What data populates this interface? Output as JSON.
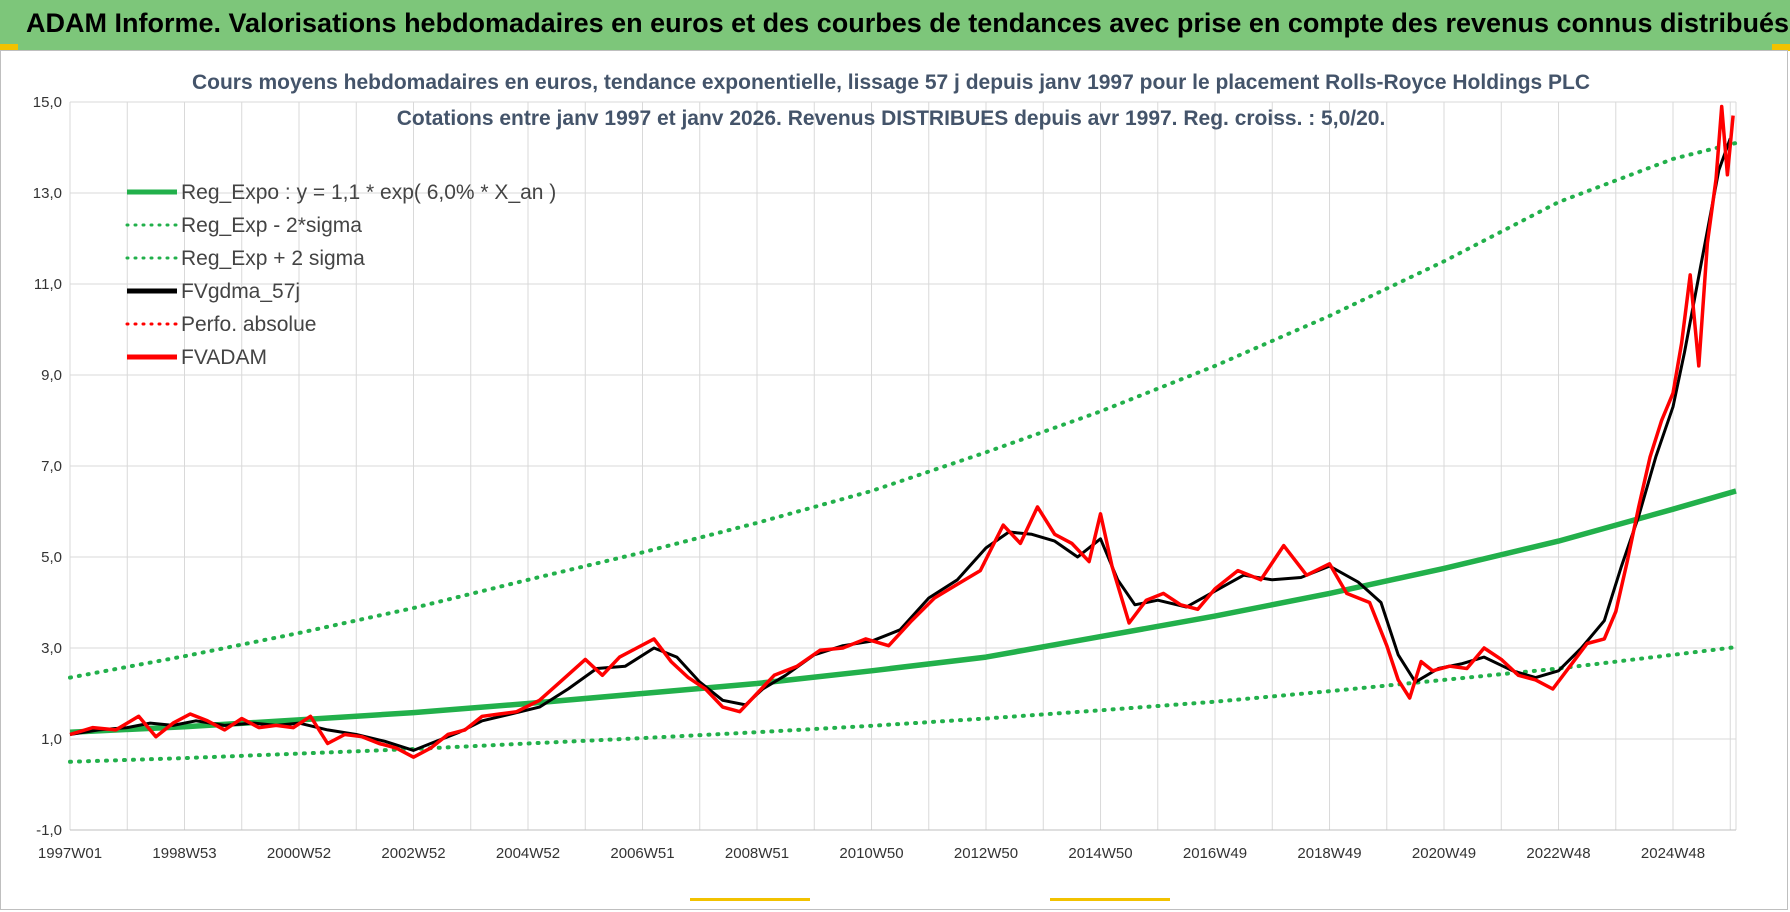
{
  "banner": {
    "title": "ADAM Informe. Valorisations hebdomadaires en euros et des courbes de tendances avec prise en compte des revenus connus distribués"
  },
  "colors": {
    "banner_bg": "#7dc67a",
    "reg_expo": "#22b04b",
    "black_line": "#000000",
    "red_line": "#ff0000",
    "grid": "#d9d9d9"
  },
  "chart_data": {
    "type": "line",
    "title_line1": "Cours moyens hebdomadaires en euros, tendance exponentielle, lissage 57 j depuis janv 1997  pour le placement Rolls-Royce Holdings PLC",
    "title_line2": "Cotations entre janv 1997 et janv 2026. Revenus DISTRIBUES depuis avr 1997. Reg. croiss. : 5,0/20.",
    "ylim": [
      -1,
      15
    ],
    "yticks": [
      "-1,0",
      "1,0",
      "3,0",
      "5,0",
      "7,0",
      "9,0",
      "11,0",
      "13,0",
      "15,0"
    ],
    "xlim": [
      1997.0,
      2026.1
    ],
    "xtick_labels": [
      "1997W01",
      "1998W53",
      "2000W52",
      "2002W52",
      "2004W52",
      "2006W51",
      "2008W51",
      "2010W50",
      "2012W50",
      "2014W50",
      "2016W49",
      "2018W49",
      "2020W49",
      "2022W48",
      "2024W48"
    ],
    "xtick_years": [
      1997.0,
      1999.0,
      2001.0,
      2003.0,
      2005.0,
      2007.0,
      2009.0,
      2011.0,
      2013.0,
      2015.0,
      2017.0,
      2019.0,
      2021.0,
      2023.0,
      2025.0
    ],
    "legend": [
      {
        "label": "Reg_Expo : y = 1,1 * exp( 6,0% *  X_an )",
        "color": "#22b04b",
        "style": "solid"
      },
      {
        "label": "Reg_Exp - 2*sigma",
        "color": "#22b04b",
        "style": "dotted"
      },
      {
        "label": "Reg_Exp + 2 sigma",
        "color": "#22b04b",
        "style": "dotted"
      },
      {
        "label": "FVgdma_57j",
        "color": "#000000",
        "style": "solid"
      },
      {
        "label": "Perfo. absolue",
        "color": "#ff0000",
        "style": "dotted"
      },
      {
        "label": "FVADAM",
        "color": "#ff0000",
        "style": "solid"
      }
    ],
    "series": [
      {
        "name": "Reg_Expo : y = 1,1 * exp( 6,0% *  X_an )",
        "x": [
          1997.0,
          1999.0,
          2001.0,
          2003.0,
          2005.0,
          2007.0,
          2009.0,
          2011.0,
          2013.0,
          2015.0,
          2017.0,
          2019.0,
          2021.0,
          2023.0,
          2025.0,
          2026.1
        ],
        "y": [
          1.15,
          1.27,
          1.42,
          1.58,
          1.78,
          2.0,
          2.22,
          2.5,
          2.8,
          3.25,
          3.7,
          4.2,
          4.75,
          5.35,
          6.05,
          6.45
        ]
      },
      {
        "name": "Reg_Exp - 2*sigma",
        "x": [
          1997.0,
          1999.0,
          2001.0,
          2003.0,
          2005.0,
          2007.0,
          2009.0,
          2011.0,
          2013.0,
          2015.0,
          2017.0,
          2019.0,
          2021.0,
          2023.0,
          2025.0,
          2026.1
        ],
        "y": [
          0.5,
          0.58,
          0.68,
          0.78,
          0.9,
          1.02,
          1.15,
          1.29,
          1.45,
          1.63,
          1.82,
          2.05,
          2.3,
          2.55,
          2.85,
          3.02
        ]
      },
      {
        "name": "Reg_Exp + 2 sigma",
        "x": [
          1997.0,
          1999.0,
          2001.0,
          2003.0,
          2005.0,
          2007.0,
          2009.0,
          2011.0,
          2013.0,
          2015.0,
          2017.0,
          2019.0,
          2021.0,
          2023.0,
          2025.0,
          2026.1
        ],
        "y": [
          2.35,
          2.82,
          3.33,
          3.88,
          4.5,
          5.1,
          5.75,
          6.45,
          7.3,
          8.2,
          9.2,
          10.3,
          11.5,
          12.8,
          13.75,
          14.1
        ]
      },
      {
        "name": "FVgdma_57j",
        "x": [
          1997.0,
          1997.5,
          1998.0,
          1998.4,
          1998.8,
          1999.2,
          1999.7,
          2000.2,
          2000.6,
          2001.0,
          2001.5,
          2002.0,
          2002.5,
          2003.0,
          2003.3,
          2003.8,
          2004.2,
          2004.7,
          2005.2,
          2005.7,
          2006.2,
          2006.7,
          2007.2,
          2007.6,
          2008.0,
          2008.4,
          2008.8,
          2009.1,
          2009.5,
          2010.0,
          2010.5,
          2011.0,
          2011.5,
          2012.0,
          2012.5,
          2013.0,
          2013.4,
          2013.8,
          2014.2,
          2014.6,
          2015.0,
          2015.3,
          2015.6,
          2016.0,
          2016.5,
          2017.0,
          2017.5,
          2018.0,
          2018.5,
          2019.0,
          2019.5,
          2019.9,
          2020.2,
          2020.5,
          2020.9,
          2021.3,
          2021.7,
          2022.2,
          2022.6,
          2023.0,
          2023.4,
          2023.8,
          2024.1,
          2024.4,
          2024.7,
          2025.0,
          2025.2,
          2025.5,
          2025.8,
          2026.0
        ],
        "y": [
          1.1,
          1.2,
          1.25,
          1.35,
          1.3,
          1.4,
          1.3,
          1.35,
          1.3,
          1.35,
          1.2,
          1.1,
          0.95,
          0.75,
          0.9,
          1.15,
          1.4,
          1.55,
          1.7,
          2.1,
          2.55,
          2.6,
          3.0,
          2.8,
          2.25,
          1.85,
          1.75,
          2.1,
          2.4,
          2.85,
          3.05,
          3.15,
          3.4,
          4.1,
          4.5,
          5.2,
          5.55,
          5.5,
          5.35,
          5.0,
          5.4,
          4.5,
          3.95,
          4.05,
          3.9,
          4.25,
          4.6,
          4.5,
          4.55,
          4.8,
          4.45,
          4.0,
          2.85,
          2.25,
          2.55,
          2.65,
          2.8,
          2.5,
          2.35,
          2.5,
          3.0,
          3.6,
          4.8,
          5.9,
          7.2,
          8.3,
          9.5,
          11.5,
          13.5,
          14.2
        ]
      },
      {
        "name": "FVADAM",
        "x": [
          1997.0,
          1997.4,
          1997.8,
          1998.2,
          1998.5,
          1998.8,
          1999.1,
          1999.4,
          1999.7,
          2000.0,
          2000.3,
          2000.6,
          2000.9,
          2001.2,
          2001.5,
          2001.8,
          2002.1,
          2002.4,
          2002.7,
          2003.0,
          2003.3,
          2003.6,
          2003.9,
          2004.2,
          2004.5,
          2004.8,
          2005.2,
          2005.6,
          2006.0,
          2006.3,
          2006.6,
          2006.9,
          2007.2,
          2007.5,
          2007.8,
          2008.1,
          2008.4,
          2008.7,
          2009.0,
          2009.3,
          2009.7,
          2010.1,
          2010.5,
          2010.9,
          2011.3,
          2011.7,
          2012.1,
          2012.5,
          2012.9,
          2013.3,
          2013.6,
          2013.9,
          2014.2,
          2014.5,
          2014.8,
          2015.0,
          2015.2,
          2015.5,
          2015.8,
          2016.1,
          2016.4,
          2016.7,
          2017.0,
          2017.4,
          2017.8,
          2018.2,
          2018.6,
          2019.0,
          2019.3,
          2019.7,
          2020.0,
          2020.2,
          2020.4,
          2020.6,
          2020.8,
          2021.1,
          2021.4,
          2021.7,
          2022.0,
          2022.3,
          2022.6,
          2022.9,
          2023.2,
          2023.5,
          2023.8,
          2024.0,
          2024.2,
          2024.4,
          2024.6,
          2024.8,
          2025.0,
          2025.15,
          2025.3,
          2025.45,
          2025.6,
          2025.75,
          2025.85,
          2025.95,
          2026.05
        ],
        "y": [
          1.1,
          1.25,
          1.2,
          1.5,
          1.05,
          1.35,
          1.55,
          1.4,
          1.2,
          1.45,
          1.25,
          1.3,
          1.25,
          1.5,
          0.9,
          1.1,
          1.05,
          0.9,
          0.8,
          0.6,
          0.8,
          1.1,
          1.2,
          1.5,
          1.55,
          1.6,
          1.85,
          2.3,
          2.75,
          2.4,
          2.8,
          3.0,
          3.2,
          2.7,
          2.35,
          2.1,
          1.7,
          1.6,
          2.0,
          2.4,
          2.6,
          2.95,
          3.0,
          3.2,
          3.05,
          3.6,
          4.1,
          4.4,
          4.7,
          5.7,
          5.3,
          6.1,
          5.5,
          5.3,
          4.9,
          5.95,
          4.8,
          3.55,
          4.05,
          4.2,
          3.95,
          3.85,
          4.3,
          4.7,
          4.5,
          5.25,
          4.6,
          4.85,
          4.2,
          4.0,
          3.05,
          2.3,
          1.9,
          2.7,
          2.5,
          2.6,
          2.55,
          3.0,
          2.75,
          2.4,
          2.3,
          2.1,
          2.6,
          3.1,
          3.2,
          3.8,
          4.9,
          6.1,
          7.2,
          8.0,
          8.6,
          9.7,
          11.2,
          9.2,
          11.9,
          13.3,
          14.9,
          13.4,
          14.7
        ]
      }
    ]
  }
}
